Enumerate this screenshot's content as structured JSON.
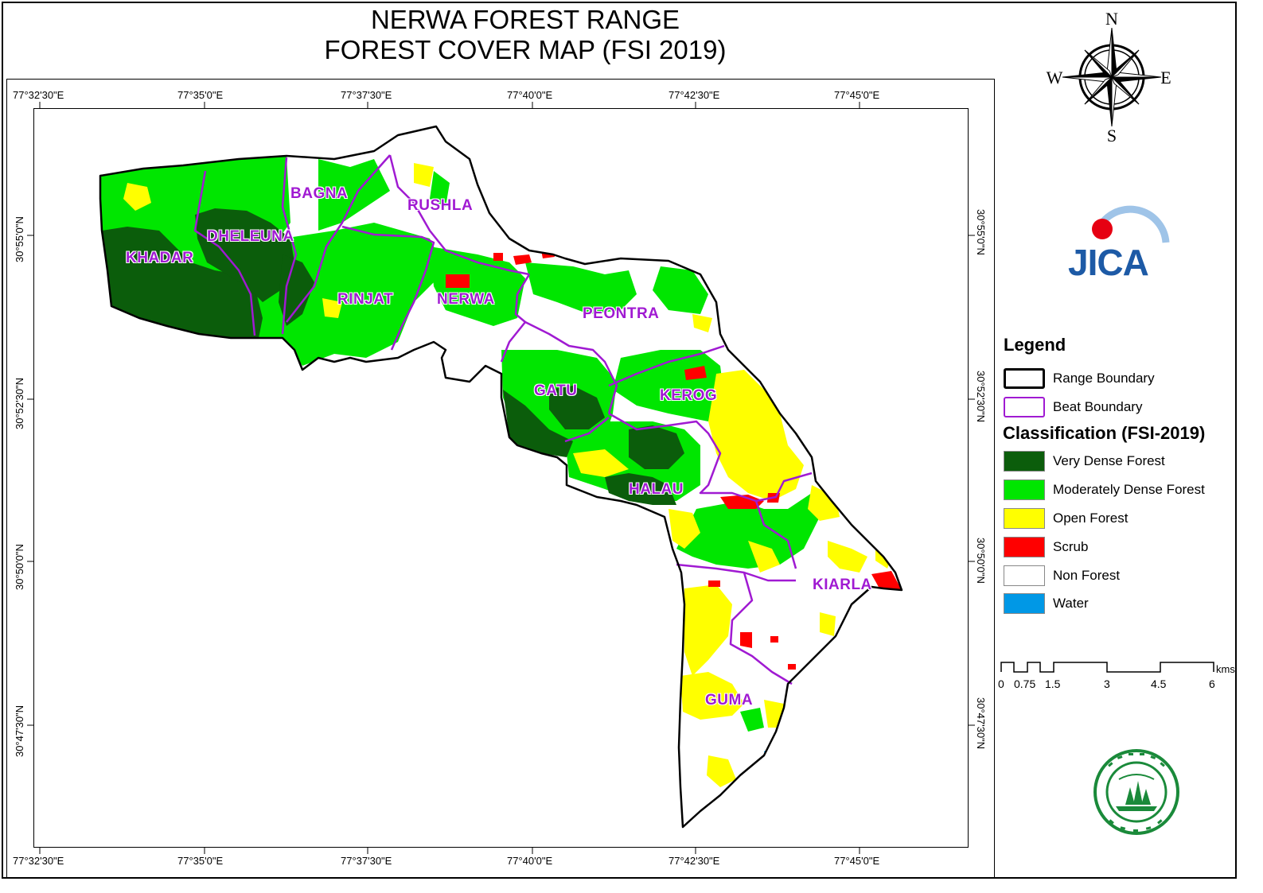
{
  "title": {
    "line1": "NERWA FOREST RANGE",
    "line2": "FOREST COVER MAP (FSI 2019)"
  },
  "compass": {
    "n": "N",
    "s": "S",
    "e": "E",
    "w": "W"
  },
  "logo_jica": "JICA",
  "axes": {
    "top_labels": [
      "77°32'30\"E",
      "77°35'0\"E",
      "77°37'30\"E",
      "77°40'0\"E",
      "77°42'30\"E",
      "77°45'0\"E"
    ],
    "bottom_labels": [
      "77°32'30\"E",
      "77°35'0\"E",
      "77°37'30\"E",
      "77°40'0\"E",
      "77°42'30\"E",
      "77°45'0\"E"
    ],
    "left_labels": [
      "30°55'0\"N",
      "30°52'30\"N",
      "30°50'0\"N",
      "30°47'30\"N"
    ],
    "right_labels": [
      "30°55'0\"N",
      "30°52'30\"N",
      "30°50'0\"N",
      "30°47'30\"N"
    ]
  },
  "beats": [
    "BAGNA",
    "RUSHLA",
    "DHELEUNA",
    "KHADAR",
    "RINJAT",
    "NERWA",
    "PEONTRA",
    "GATU",
    "KEROG",
    "HALAU",
    "KIARLA",
    "GUMA"
  ],
  "legend": {
    "title": "Legend",
    "boundaries": [
      {
        "label": "Range Boundary",
        "color": "#000000"
      },
      {
        "label": "Beat Boundary",
        "color": "#a01ad2"
      }
    ],
    "classification_title": "Classification (FSI-2019)",
    "classes": [
      {
        "label": "Very Dense Forest",
        "color": "#0b5d0b"
      },
      {
        "label": "Moderately Dense Forest",
        "color": "#00e600"
      },
      {
        "label": "Open Forest",
        "color": "#ffff00"
      },
      {
        "label": "Scrub",
        "color": "#ff0000"
      },
      {
        "label": "Non Forest",
        "color": "#ffffff"
      },
      {
        "label": "Water",
        "color": "#0098e6"
      }
    ]
  },
  "scale_bar": {
    "labels": [
      "0",
      "0.75",
      "1.5",
      "3",
      "4.5",
      "6"
    ],
    "unit": "kms"
  },
  "colors": {
    "range_boundary": "#000000",
    "beat_boundary": "#a01ad2",
    "very_dense": "#0b5d0b",
    "mod_dense": "#00e600",
    "open": "#ffff00",
    "scrub": "#ff0000",
    "non_forest": "#ffffff"
  }
}
